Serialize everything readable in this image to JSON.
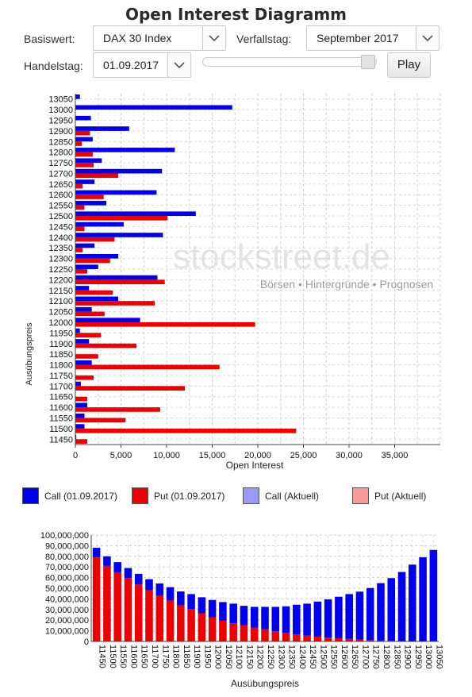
{
  "page_title": "Open Interest Diagramm",
  "controls": {
    "basiswert_label": "Basiswert:",
    "basiswert_value": "DAX 30 Index",
    "verfallstag_label": "Verfallstag:",
    "verfallstag_value": "September 2017",
    "handelstag_label": "Handelstag:",
    "handelstag_value": "01.09.2017",
    "slider_level": 0.95,
    "play_label": "Play"
  },
  "watermark": {
    "brand": "stockstreet.de",
    "tagline": "Börsen • Hintergründe • Prognosen"
  },
  "legend": [
    {
      "label": "Call (01.09.2017)",
      "color": "#0000ee"
    },
    {
      "label": "Put (01.09.2017)",
      "color": "#ee0000"
    },
    {
      "label": "Call (Aktuell)",
      "color": "#9999ff"
    },
    {
      "label": "Put (Aktuell)",
      "color": "#ff9999"
    }
  ],
  "chart_data": [
    {
      "type": "bar",
      "orientation": "horizontal",
      "xlabel": "Open Interest",
      "ylabel": "Ausübungspreis",
      "xlim": [
        0,
        40000
      ],
      "xticks": [
        "0",
        "5,000",
        "10,000",
        "15,000",
        "20,000",
        "25,000",
        "30,000",
        "35,000"
      ],
      "categories": [
        "13050",
        "13000",
        "12950",
        "12900",
        "12850",
        "12800",
        "12750",
        "12700",
        "12650",
        "12600",
        "12550",
        "12500",
        "12450",
        "12400",
        "12350",
        "12300",
        "12250",
        "12200",
        "12150",
        "12100",
        "12050",
        "12000",
        "11950",
        "11900",
        "11850",
        "11800",
        "11750",
        "11700",
        "11650",
        "11600",
        "11550",
        "11500",
        "11450"
      ],
      "series": [
        {
          "name": "Call (01.09.2017)",
          "color": "#0000ee",
          "values": [
            500,
            17200,
            1700,
            5900,
            1900,
            10900,
            2900,
            9500,
            2100,
            8900,
            3400,
            13200,
            5300,
            9600,
            2100,
            4700,
            2500,
            9000,
            1500,
            4700,
            1800,
            7100,
            500,
            1500,
            0,
            1800,
            0,
            600,
            0,
            1300,
            1000,
            1000,
            100
          ]
        },
        {
          "name": "Put (01.09.2017)",
          "color": "#ee0000",
          "values": [
            0,
            0,
            0,
            1600,
            700,
            1900,
            2000,
            4700,
            800,
            3100,
            1000,
            10100,
            1000,
            4300,
            800,
            3800,
            1300,
            9800,
            4100,
            8700,
            3200,
            19700,
            2800,
            6700,
            2500,
            15800,
            2000,
            12000,
            1300,
            9300,
            5500,
            24200,
            1300
          ]
        }
      ]
    },
    {
      "type": "bar",
      "orientation": "vertical",
      "stacked": true,
      "xlabel": "Ausübungspreis",
      "ylabel": "",
      "ylim": [
        0,
        100000000
      ],
      "yticks": [
        "0",
        "10,000,000",
        "20,000,000",
        "30,000,000",
        "40,000,000",
        "50,000,000",
        "60,000,000",
        "70,000,000",
        "80,000,000",
        "90,000,000",
        "100,000,000"
      ],
      "categories": [
        "11450",
        "11500",
        "11550",
        "11600",
        "11650",
        "11700",
        "11750",
        "11800",
        "11850",
        "11900",
        "11950",
        "12000",
        "12050",
        "12100",
        "12150",
        "12200",
        "12250",
        "12300",
        "12350",
        "12400",
        "12450",
        "12500",
        "12550",
        "12600",
        "12650",
        "12700",
        "12750",
        "12800",
        "12850",
        "12900",
        "12950",
        "13000",
        "13050"
      ],
      "series": [
        {
          "name": "Put (01.09.2017)",
          "color": "#ee0000",
          "values": [
            79000000,
            71000000,
            65000000,
            59500000,
            53500000,
            48000000,
            43000000,
            38500000,
            34000000,
            30500000,
            26500000,
            22500000,
            19500000,
            17000000,
            15000000,
            13000000,
            11500000,
            9500000,
            8000000,
            6500000,
            5500000,
            4500000,
            3500000,
            3000000,
            2500000,
            1800000,
            1200000,
            800000,
            500000,
            300000,
            200000,
            100000,
            0
          ]
        },
        {
          "name": "Call (01.09.2017)",
          "color": "#0000ee",
          "values": [
            9000000,
            9000000,
            9500000,
            9500000,
            10000000,
            10500000,
            11500000,
            12500000,
            13000000,
            14000000,
            15000000,
            16500000,
            17500000,
            18500000,
            18500000,
            19500000,
            21000000,
            23000000,
            25000000,
            28000000,
            30000000,
            33000000,
            36000000,
            39000000,
            42000000,
            45000000,
            49000000,
            54000000,
            59000000,
            65000000,
            72000000,
            79000000,
            86000000
          ]
        }
      ]
    }
  ]
}
